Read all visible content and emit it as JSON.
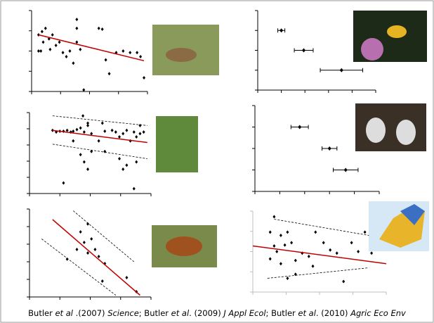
{
  "chart_data": [
    {
      "type": "scatter",
      "color": "#000000",
      "axis_color": "#000000",
      "x": [
        6,
        9,
        10,
        12,
        15,
        8,
        18,
        16,
        21,
        24,
        27,
        30,
        33,
        36,
        39,
        39,
        42,
        45,
        58,
        61,
        64,
        67,
        73,
        79,
        85,
        91,
        94,
        97,
        39,
        6
      ],
      "values": [
        70,
        74,
        61,
        78,
        65,
        50,
        70,
        52,
        57,
        61,
        48,
        43,
        50,
        35,
        78,
        61,
        52,
        2,
        78,
        77,
        39,
        22,
        48,
        50,
        48,
        48,
        43,
        17,
        89,
        50
      ],
      "fit": {
        "color": "#c00000",
        "x": [
          6,
          97
        ],
        "y": [
          70,
          38
        ]
      },
      "xlim": [
        0,
        100
      ],
      "ylim": [
        0,
        100
      ],
      "yticks": [
        0,
        25,
        50,
        75,
        100
      ],
      "xticks": [
        0,
        25,
        50,
        75,
        100
      ]
    },
    {
      "type": "errorbar",
      "color": "#000000",
      "axis_color": "#000000",
      "categories": [
        null,
        null,
        null
      ],
      "values": [
        20,
        39,
        71
      ],
      "errors": [
        3,
        8,
        18
      ],
      "xlim": [
        0,
        100
      ],
      "xticks": [
        0,
        20,
        40,
        60,
        80,
        100
      ],
      "yticks": [
        0,
        25,
        50,
        75,
        100
      ],
      "ylim": [
        0,
        100
      ]
    },
    {
      "type": "scatter",
      "color": "#000000",
      "axis_color": "#000000",
      "x": [
        19,
        22,
        25,
        28,
        31,
        34,
        36,
        39,
        42,
        45,
        48,
        44,
        51,
        57,
        62,
        68,
        71,
        74,
        77,
        80,
        83,
        86,
        88,
        91,
        94,
        42,
        45,
        48,
        51,
        62,
        74,
        77,
        80,
        88,
        28,
        86,
        48,
        60,
        91,
        36
      ],
      "values": [
        78,
        76,
        77,
        77,
        78,
        76,
        77,
        79,
        81,
        76,
        87,
        96,
        74,
        65,
        77,
        78,
        76,
        70,
        74,
        78,
        65,
        76,
        70,
        74,
        76,
        48,
        39,
        30,
        52,
        52,
        43,
        30,
        35,
        39,
        13,
        6,
        84,
        87,
        84,
        65
      ],
      "fit": {
        "color": "#c00000",
        "x": [
          19,
          97
        ],
        "y": [
          78,
          63
        ]
      },
      "bounds": [
        {
          "x": [
            19,
            97
          ],
          "y": [
            96,
            84
          ]
        },
        {
          "x": [
            19,
            97
          ],
          "y": [
            61,
            43
          ]
        }
      ],
      "xlim": [
        0,
        100
      ],
      "ylim": [
        0,
        100
      ],
      "yticks": [
        0,
        20,
        40,
        60,
        80,
        100
      ],
      "xticks": [
        0,
        25,
        50,
        75,
        100
      ]
    },
    {
      "type": "errorbar",
      "color": "#000000",
      "axis_color": "#000000",
      "categories": [
        null,
        null,
        null
      ],
      "values": [
        36,
        60,
        73
      ],
      "errors": [
        7,
        6,
        10
      ],
      "xlim": [
        0,
        100
      ],
      "xticks": [
        0,
        20,
        40,
        60,
        80,
        100
      ],
      "yticks": [
        0,
        25,
        50,
        75,
        100
      ],
      "ylim": [
        0,
        100
      ]
    },
    {
      "type": "scatter",
      "color": "#000000",
      "axis_color": "#000000",
      "x": [
        42,
        48,
        45,
        51,
        54,
        39,
        48,
        57,
        62,
        31,
        80,
        88,
        60
      ],
      "values": [
        74,
        83,
        62,
        66,
        54,
        54,
        50,
        46,
        38,
        43,
        22,
        6,
        18
      ],
      "fit": {
        "color": "#c00000",
        "x": [
          19,
          91
        ],
        "y": [
          88,
          2
        ]
      },
      "bounds": [
        {
          "x": [
            36,
            86
          ],
          "y": [
            98,
            40
          ]
        },
        {
          "x": [
            10,
            71
          ],
          "y": [
            66,
            2
          ]
        }
      ],
      "xlim": [
        0,
        100
      ],
      "ylim": [
        0,
        100
      ],
      "yticks": [
        0,
        20,
        40,
        60,
        80,
        100
      ],
      "xticks": [
        0,
        25,
        50,
        75,
        100
      ]
    },
    {
      "type": "scatter",
      "color": "#000000",
      "axis_color": "#bfbfbf",
      "x": [
        16,
        13,
        21,
        26,
        16,
        18,
        24,
        29,
        13,
        21,
        32,
        37,
        42,
        47,
        53,
        58,
        63,
        32,
        74,
        79,
        84,
        89,
        68,
        26,
        45
      ],
      "values": [
        93,
        74,
        70,
        74,
        57,
        50,
        58,
        61,
        41,
        35,
        39,
        48,
        44,
        74,
        61,
        52,
        48,
        22,
        61,
        50,
        74,
        48,
        13,
        17,
        32
      ],
      "fit": {
        "color": "#c00000",
        "x": [
          0,
          100
        ],
        "y": [
          57,
          35
        ]
      },
      "bounds": [
        {
          "x": [
            16,
            87
          ],
          "y": [
            90,
            70
          ]
        },
        {
          "x": [
            11,
            87
          ],
          "y": [
            17,
            30
          ]
        }
      ],
      "xlim": [
        0,
        100
      ],
      "ylim": [
        0,
        100
      ],
      "yticks": [
        0,
        25,
        50,
        75,
        100
      ],
      "xticks": [
        0,
        25,
        50,
        75,
        100
      ]
    }
  ],
  "caption": [
    "Butler ",
    "et al",
    " .(2007) ",
    "Science",
    "; Butler ",
    "et al",
    ". (2009) ",
    "J Appl Ecol",
    "; Butler ",
    "et al",
    ". (2010) ",
    "Agric Eco Env"
  ]
}
